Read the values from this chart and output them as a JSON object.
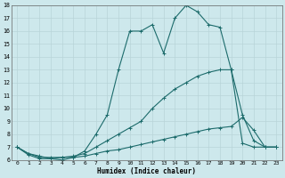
{
  "xlabel": "Humidex (Indice chaleur)",
  "bg_color": "#cde8ec",
  "grid_color": "#b8d4d8",
  "line_color": "#1c6b6b",
  "xlim": [
    -0.5,
    23.5
  ],
  "ylim": [
    6,
    18
  ],
  "xticks": [
    0,
    1,
    2,
    3,
    4,
    5,
    6,
    7,
    8,
    9,
    10,
    11,
    12,
    13,
    14,
    15,
    16,
    17,
    18,
    19,
    20,
    21,
    22,
    23
  ],
  "yticks": [
    6,
    7,
    8,
    9,
    10,
    11,
    12,
    13,
    14,
    15,
    16,
    17,
    18
  ],
  "curve1_x": [
    0,
    1,
    2,
    3,
    4,
    5,
    6,
    7,
    8,
    9,
    10,
    11,
    12,
    13,
    14,
    15,
    16,
    17,
    18,
    19,
    20,
    21,
    22,
    23
  ],
  "curve1_y": [
    7.0,
    6.5,
    6.3,
    6.1,
    6.0,
    6.2,
    6.7,
    8.0,
    9.5,
    13.0,
    16.0,
    16.0,
    16.5,
    14.3,
    17.0,
    18.0,
    17.5,
    16.5,
    16.3,
    13.0,
    7.3,
    7.0,
    7.0,
    7.0
  ],
  "curve2_x": [
    0,
    1,
    2,
    3,
    4,
    5,
    6,
    7,
    8,
    9,
    10,
    11,
    12,
    13,
    14,
    15,
    16,
    17,
    18,
    19,
    20,
    21,
    22,
    23
  ],
  "curve2_y": [
    7.0,
    6.5,
    6.2,
    6.2,
    6.2,
    6.3,
    6.5,
    7.0,
    7.5,
    8.0,
    8.5,
    9.0,
    10.0,
    10.8,
    11.5,
    12.0,
    12.5,
    12.8,
    13.0,
    13.0,
    9.5,
    7.5,
    7.0,
    7.0
  ],
  "curve3_x": [
    0,
    1,
    2,
    3,
    4,
    5,
    6,
    7,
    8,
    9,
    10,
    11,
    12,
    13,
    14,
    15,
    16,
    17,
    18,
    19,
    20,
    21,
    22,
    23
  ],
  "curve3_y": [
    7.0,
    6.4,
    6.1,
    6.1,
    6.2,
    6.2,
    6.3,
    6.5,
    6.7,
    6.8,
    7.0,
    7.2,
    7.4,
    7.6,
    7.8,
    8.0,
    8.2,
    8.4,
    8.5,
    8.6,
    9.3,
    8.3,
    7.0,
    7.0
  ]
}
